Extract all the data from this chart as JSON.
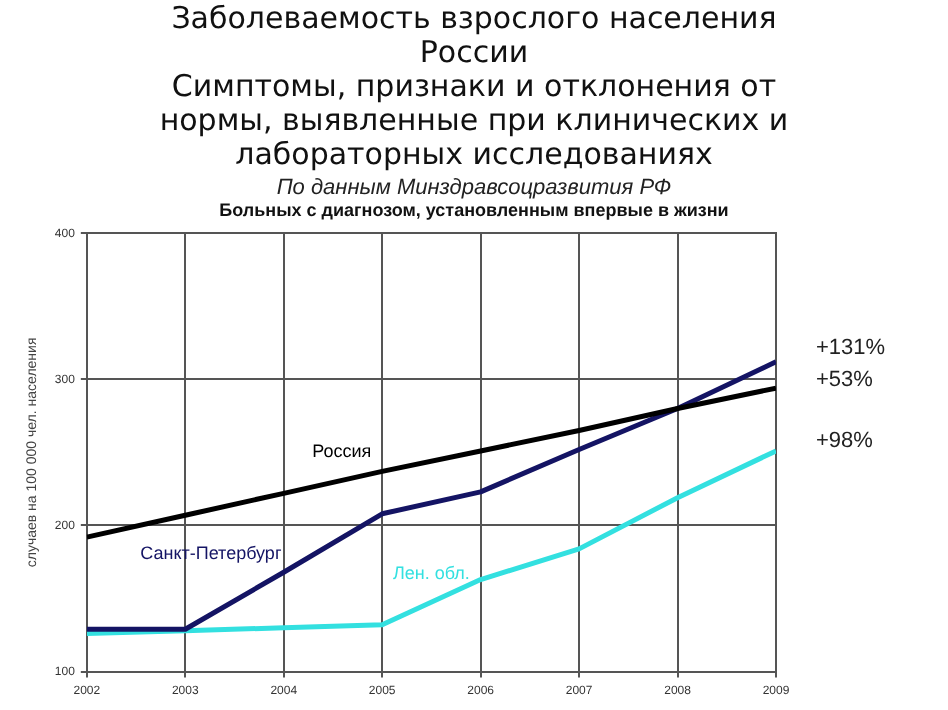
{
  "chart_data": {
    "type": "line",
    "title": "Заболеваемость взрослого населения России\nСимптомы, признаки и отклонения от нормы, выявленные при клинических и лабораторных исследованиях",
    "subtitle": "По данным Минздравсоцразвития РФ",
    "ylabel": "случаев на 100 000 чел. населения",
    "x": [
      2002,
      2003,
      2004,
      2005,
      2006,
      2007,
      2008,
      2009
    ],
    "series": [
      {
        "name": "Россия",
        "color": "#000000",
        "values": [
          192,
          207,
          222,
          237,
          251,
          265,
          280,
          294
        ]
      },
      {
        "name": "Санкт-Петербург",
        "color": "#141464",
        "values": [
          129,
          129,
          168,
          208,
          223,
          252,
          280,
          312
        ]
      },
      {
        "name": "Лен. обл.",
        "color": "#33e0e0",
        "values": [
          126,
          128,
          130,
          132,
          163,
          184,
          219,
          251
        ]
      }
    ],
    "annotations": [
      "Больных с диагнозом, установленным впервые в жизни",
      "+131%",
      "+53%",
      "+98%"
    ],
    "xlim": [
      2002,
      2009
    ],
    "xticks": [
      2002,
      2003,
      2004,
      2005,
      2006,
      2007,
      2008,
      2009
    ],
    "ylim": [
      100,
      400
    ],
    "yticks": [
      100,
      200,
      300,
      400
    ],
    "grid": true,
    "legend": false,
    "marker": "none",
    "line_style": "solid"
  }
}
